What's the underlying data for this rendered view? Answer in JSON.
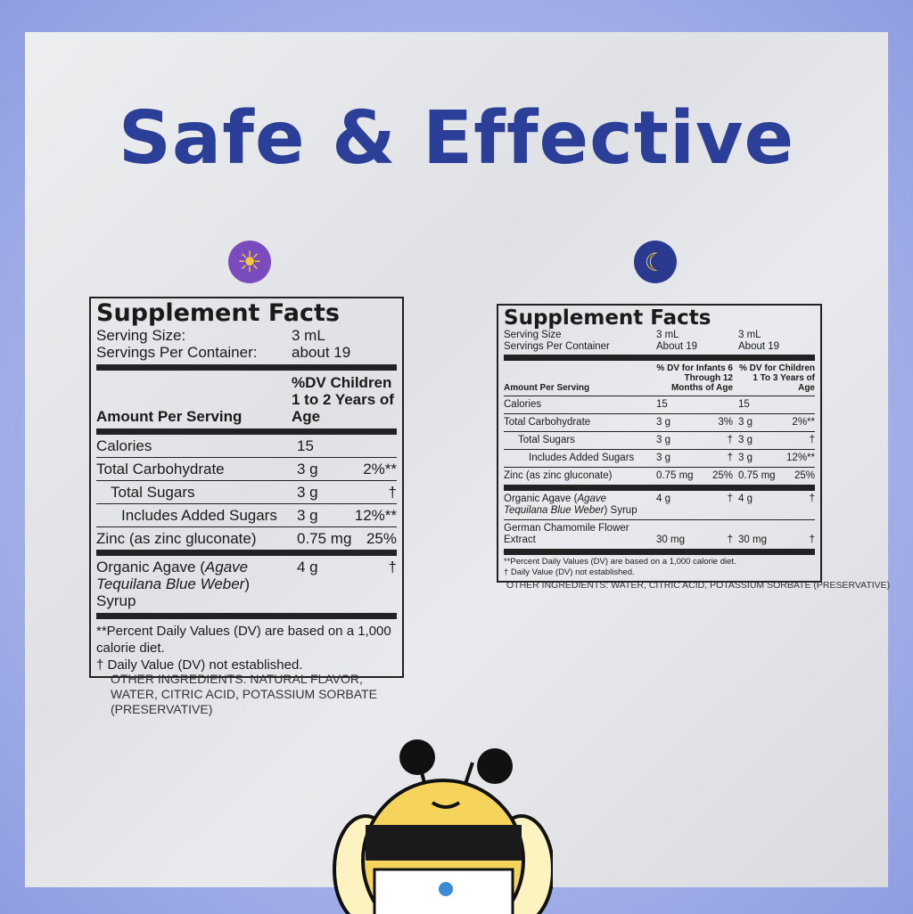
{
  "title": "Safe & Effective",
  "icons": {
    "left": "sun-icon",
    "right": "moon-icon"
  },
  "colors": {
    "title": "#2b3f98",
    "sun_bg": "#7a4bbf",
    "moon_bg": "#2a3a8f"
  },
  "left": {
    "heading": "Supplement Facts",
    "serving_size_label": "Serving Size:",
    "serving_size": "3 mL",
    "servings_label": "Servings Per Container:",
    "servings": "about 19",
    "amount_label": "Amount Per Serving",
    "dv_header": "%DV Children 1 to 2 Years of Age",
    "rows": [
      {
        "name": "Calories",
        "amt": "15",
        "dv": ""
      },
      {
        "name": "Total Carbohydrate",
        "amt": "3 g",
        "dv": "2%**"
      },
      {
        "name": "Total Sugars",
        "amt": "3 g",
        "dv": "†"
      },
      {
        "name": "Includes Added Sugars",
        "amt": "3 g",
        "dv": "12%**"
      },
      {
        "name": "Zinc (as zinc gluconate)",
        "amt": "0.75 mg",
        "dv": "25%"
      }
    ],
    "agave_a": "Organic Agave (",
    "agave_i": "Agave Tequilana Blue Weber",
    "agave_b": ") Syrup",
    "agave_amt": "4 g",
    "agave_dv": "†",
    "foot1": "**Percent Daily Values (DV) are based on a 1,000 calorie diet.",
    "foot2": "† Daily Value (DV) not established.",
    "other": "OTHER INGREDIENTS: NATURAL FLAVOR, WATER, CITRIC ACID, POTASSIUM SORBATE (PRESERVATIVE)"
  },
  "right": {
    "heading": "Supplement Facts",
    "serving_size_label": "Serving Size",
    "servings_label": "Servings Per Container",
    "col1_size": "3 mL",
    "col1_servings": "About 19",
    "col2_size": "3 mL",
    "col2_servings": "About 19",
    "amount_label": "Amount Per Serving",
    "col1_header": "% DV for Infants 6 Through 12 Months of Age",
    "col2_header": "% DV for Children 1 To 3 Years of Age",
    "rows": [
      {
        "name": "Calories",
        "a1": "15",
        "d1": "",
        "a2": "15",
        "d2": ""
      },
      {
        "name": "Total Carbohydrate",
        "a1": "3 g",
        "d1": "3%",
        "a2": "3 g",
        "d2": "2%**"
      },
      {
        "name": "Total Sugars",
        "a1": "3 g",
        "d1": "†",
        "a2": "3 g",
        "d2": "†"
      },
      {
        "name": "Includes Added Sugars",
        "a1": "3 g",
        "d1": "†",
        "a2": "3 g",
        "d2": "12%**"
      },
      {
        "name": "Zinc (as zinc gluconate)",
        "a1": "0.75 mg",
        "d1": "25%",
        "a2": "0.75 mg",
        "d2": "25%"
      }
    ],
    "agave_a": "Organic Agave (",
    "agave_i": "Agave Tequilana Blue Weber",
    "agave_b": ") Syrup",
    "agave_a1": "4 g",
    "agave_d1": "†",
    "agave_a2": "4 g",
    "agave_d2": "†",
    "cham": "German Chamomile Flower Extract",
    "cham_a1": "30 mg",
    "cham_d1": "†",
    "cham_a2": "30 mg",
    "cham_d2": "†",
    "foot1": "**Percent Daily Values (DV) are based on a 1,000 calorie diet.",
    "foot2": "† Daily Value (DV) not established.",
    "other": "OTHER INGREDIENTS: WATER, CITRIC ACID, POTASSIUM SORBATE (PRESERVATIVE)"
  }
}
